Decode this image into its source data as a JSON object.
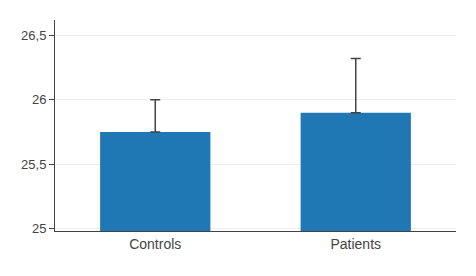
{
  "chart_data": {
    "type": "bar",
    "categories": [
      "Controls",
      "Patients"
    ],
    "values": [
      25.75,
      25.9
    ],
    "errors": [
      0.25,
      0.42
    ],
    "ylim": [
      24.98,
      26.62
    ],
    "yticks": [
      25,
      {
        "value": 25.5,
        "label": "25,5"
      },
      26,
      {
        "value": 26.5,
        "label": "26,5"
      }
    ]
  }
}
